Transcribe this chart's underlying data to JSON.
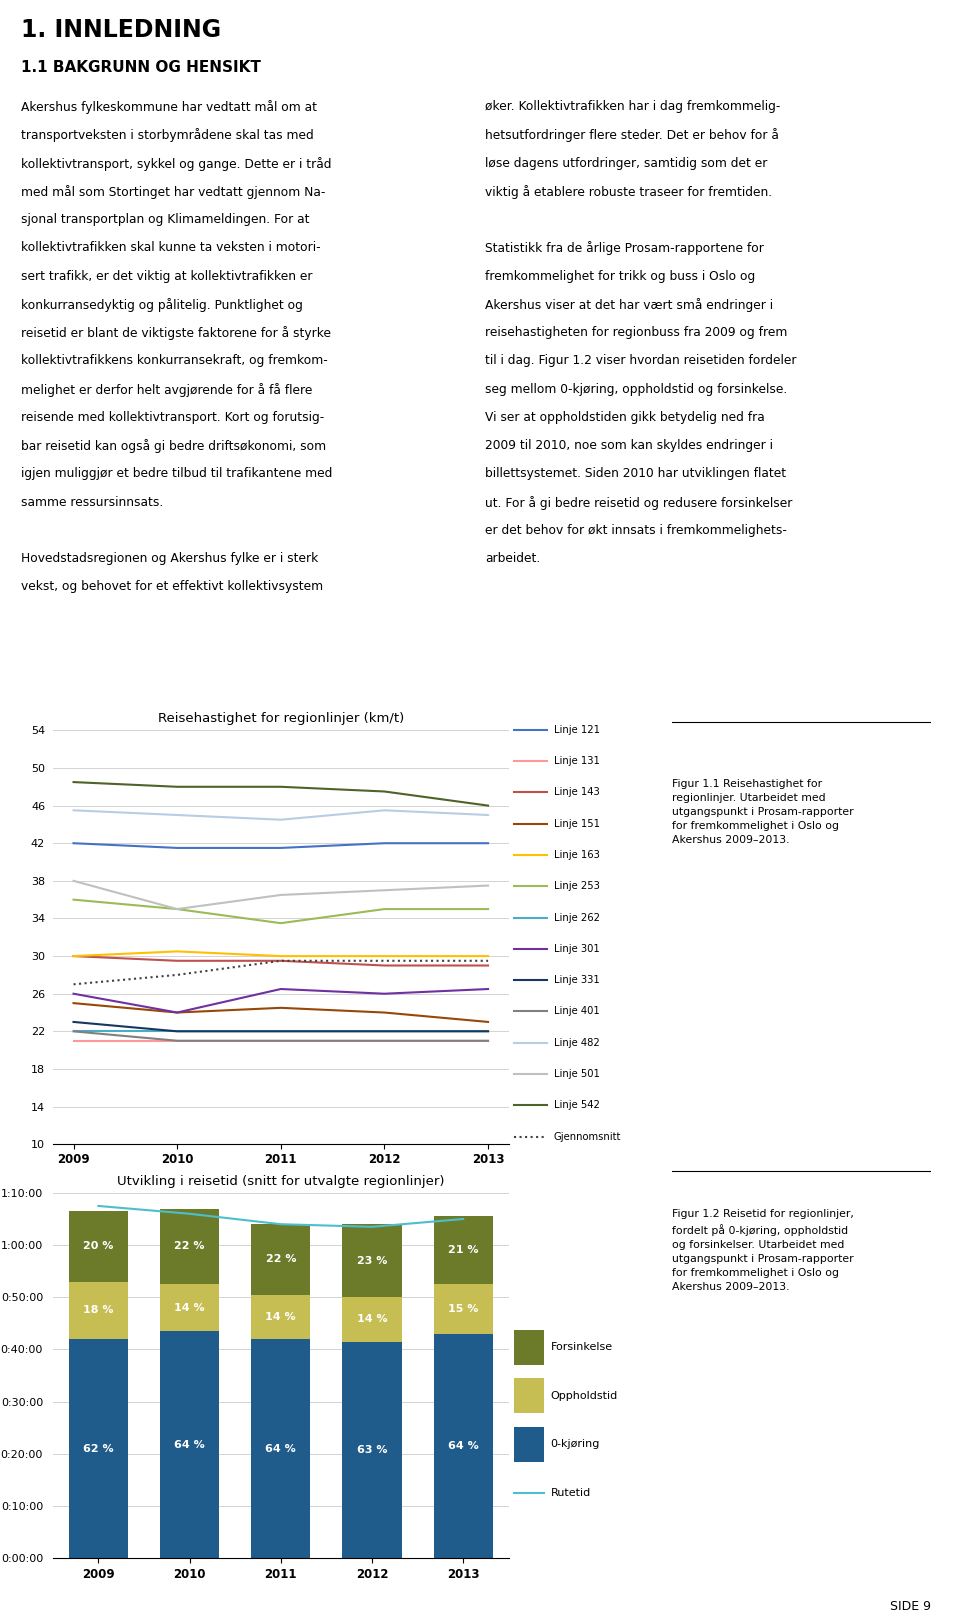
{
  "chart1": {
    "title": "Reisehastighet for regionlinjer (km/t)",
    "years": [
      2009,
      2010,
      2011,
      2012,
      2013
    ],
    "ylim": [
      10,
      54
    ],
    "yticks": [
      10,
      14,
      18,
      22,
      26,
      30,
      34,
      38,
      42,
      46,
      50,
      54
    ],
    "lines": [
      {
        "label": "Linje 121",
        "color": "#4472C4",
        "style": "solid",
        "values": [
          42,
          41.5,
          41.5,
          42,
          42
        ]
      },
      {
        "label": "Linje 131",
        "color": "#FF9999",
        "style": "solid",
        "values": [
          21,
          21,
          21,
          21,
          21
        ]
      },
      {
        "label": "Linje 143",
        "color": "#C0504D",
        "style": "solid",
        "values": [
          30,
          29.5,
          29.5,
          29,
          29
        ]
      },
      {
        "label": "Linje 151",
        "color": "#974706",
        "style": "solid",
        "values": [
          25,
          24,
          24.5,
          24,
          23
        ]
      },
      {
        "label": "Linje 163",
        "color": "#FFC000",
        "style": "solid",
        "values": [
          30,
          30.5,
          30,
          30,
          30
        ]
      },
      {
        "label": "Linje 253",
        "color": "#9BBB59",
        "style": "solid",
        "values": [
          36,
          35,
          33.5,
          35,
          35
        ]
      },
      {
        "label": "Linje 262",
        "color": "#4BACC6",
        "style": "solid",
        "values": [
          22,
          22,
          22,
          22,
          22
        ]
      },
      {
        "label": "Linje 301",
        "color": "#7030A0",
        "style": "solid",
        "values": [
          26,
          24,
          26.5,
          26,
          26.5
        ]
      },
      {
        "label": "Linje 331",
        "color": "#17375E",
        "style": "solid",
        "values": [
          23,
          22,
          22,
          22,
          22
        ]
      },
      {
        "label": "Linje 401",
        "color": "#808080",
        "style": "solid",
        "values": [
          22,
          21,
          21,
          21,
          21
        ]
      },
      {
        "label": "Linje 482",
        "color": "#B8CCE4",
        "style": "solid",
        "values": [
          45.5,
          45,
          44.5,
          45.5,
          45
        ]
      },
      {
        "label": "Linje 501",
        "color": "#C0C0C0",
        "style": "solid",
        "values": [
          38,
          35,
          36.5,
          37,
          37.5
        ]
      },
      {
        "label": "Linje 542",
        "color": "#4F6228",
        "style": "solid",
        "values": [
          48.5,
          48,
          48,
          47.5,
          46
        ]
      },
      {
        "label": "Gjennomsnitt",
        "color": "#404040",
        "style": "dotted",
        "values": [
          27,
          28,
          29.5,
          29.5,
          29.5
        ]
      }
    ]
  },
  "chart2": {
    "title": "Utvikling i reisetid (snitt for utvalgte regionlinjer)",
    "years": [
      2009,
      2010,
      2011,
      2012,
      2013
    ],
    "kjoring_pct": [
      62,
      64,
      64,
      63,
      64
    ],
    "opphold_pct": [
      18,
      14,
      14,
      14,
      15
    ],
    "forsinkelse_pct": [
      20,
      22,
      22,
      23,
      21
    ],
    "kjoring_min": [
      42,
      43.5,
      42,
      41.5,
      43
    ],
    "opphold_min": [
      11,
      9,
      8.5,
      8.5,
      9.5
    ],
    "forsinkelse_min": [
      13.5,
      14.5,
      13.5,
      14,
      13
    ],
    "rutetid_min": [
      67.5,
      66,
      64,
      63.5,
      65
    ],
    "color_kjoring": "#1F5C8B",
    "color_opphold": "#C6BE53",
    "color_forsinkelse": "#6B7B2A",
    "color_rutetid": "#4DBECC",
    "ytick_labels": [
      "0:00:00",
      "0:10:00",
      "0:20:00",
      "0:30:00",
      "0:40:00",
      "0:50:00",
      "1:00:00",
      "1:10:00"
    ],
    "ytick_values": [
      0,
      10,
      20,
      30,
      40,
      50,
      60,
      70
    ]
  },
  "page_text": {
    "main_title": "1. INNLEDNING",
    "section_title": "1.1 BAKGRUNN OG HENSIKT",
    "col1_lines": [
      "Akershus fylkeskommune har vedtatt mål om at",
      "transportveksten i storbymrådene skal tas med",
      "kollektivtransport, sykkel og gange. Dette er i tråd",
      "med mål som Stortinget har vedtatt gjennom Na-",
      "sjonal transportplan og Klimameldingen. For at",
      "kollektivtrafikken skal kunne ta veksten i motori-",
      "sert trafikk, er det viktig at kollektivtrafikken er",
      "konkurransedyktig og pålitelig. Punktlighet og",
      "reisetid er blant de viktigste faktorene for å styrke",
      "kollektivtrafikkens konkurransekraft, og fremkom-",
      "melighet er derfor helt avgjørende for å få flere",
      "reisende med kollektivtransport. Kort og forutsig-",
      "bar reisetid kan også gi bedre driftsøkonomi, som",
      "igjen muliggjør et bedre tilbud til trafikantene med",
      "samme ressursinnsats.",
      "",
      "Hovedstadsregionen og Akershus fylke er i sterk",
      "vekst, og behovet for et effektivt kollektivsystem"
    ],
    "col2_lines": [
      "øker. Kollektivtrafikken har i dag fremkommelig-",
      "hetsutfordringer flere steder. Det er behov for å",
      "løse dagens utfordringer, samtidig som det er",
      "viktig å etablere robuste traseer for fremtiden.",
      "",
      "Statistikk fra de årlige Prosam-rapportene for",
      "fremkommelighet for trikk og buss i Oslo og",
      "Akershus viser at det har vært små endringer i",
      "reisehastigheten for regionbuss fra 2009 og frem",
      "til i dag. Figur 1.2 viser hvordan reisetiden fordeler",
      "seg mellom 0-kjøring, oppholdstid og forsinkelse.",
      "Vi ser at oppholdstiden gikk betydelig ned fra",
      "2009 til 2010, noe som kan skyldes endringer i",
      "billettsystemet. Siden 2010 har utviklingen flatet",
      "ut. For å gi bedre reisetid og redusere forsinkelser",
      "er det behov for økt innsats i fremkommelighets-",
      "arbeidet."
    ],
    "fig1_caption": "Figur 1.1 Reisehastighet for\nregionlinjer. Utarbeidet med\nutgangspunkt i Prosam-rapporter\nfor fremkommelighet i Oslo og\nAkershus 2009–2013.",
    "fig2_caption": "Figur 1.2 Reisetid for regionlinjer,\nfordelt på 0-kjøring, oppholdstid\nog forsinkelser. Utarbeidet med\nutgangspunkt i Prosam-rapporter\nfor fremkommelighet i Oslo og\nAkershus 2009–2013.",
    "page_number": "SIDE 9"
  }
}
